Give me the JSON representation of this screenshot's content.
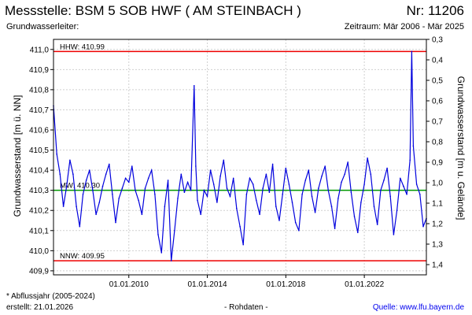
{
  "header": {
    "title": "Messstelle: BSM  5 SOB HWF ( AM STEINBACH )",
    "number": "Nr: 11206",
    "aquifer_label": "Grundwasserleiter:",
    "period": "Zeitraum: Mär 2006 - Mär 2025"
  },
  "footer": {
    "note": "* Abflussjahr (2005-2024)",
    "created": "erstellt:  21.01.2026",
    "data_type": "- Rohdaten -",
    "source": "Quelle:  www.lfu.bayern.de"
  },
  "colors": {
    "series": "#0000dd",
    "hhw": "#ee0000",
    "nnw": "#ee0000",
    "mw": "#009900",
    "grid": "#d0d0d0"
  },
  "chart_data": {
    "type": "line",
    "title": "",
    "ylabel": "Grundwasserstand [m ü. NN]",
    "ylabel_right": "Grundwasserstand [m u. Gelände]",
    "ylim": [
      409.88,
      411.05
    ],
    "ylim_right": [
      0.3,
      1.45
    ],
    "yticks": [
      "411,0",
      "410,9",
      "410,8",
      "410,7",
      "410,6",
      "410,5",
      "410,4",
      "410,3",
      "410,2",
      "410,1",
      "410,0",
      "409,9"
    ],
    "yticks_right": [
      "0,3",
      "0,4",
      "0,5",
      "0,6",
      "0,7",
      "0,8",
      "0,9",
      "1,0",
      "1,1",
      "1,2",
      "1,3",
      "1,4"
    ],
    "xticks": [
      "01.01.2010",
      "01.01.2014",
      "01.01.2018",
      "01.01.2022"
    ],
    "xlim": [
      "2006-03-01",
      "2025-03-01"
    ],
    "grid": true,
    "reference_lines": [
      {
        "label": "HHW: 410.99",
        "value": 410.99
      },
      {
        "label": "MW: 410.30",
        "value": 410.3
      },
      {
        "label": "NNW: 409.95",
        "value": 409.95
      }
    ],
    "series": [
      {
        "x": [
          "2006-03",
          "2006-05",
          "2006-07",
          "2006-09",
          "2006-11",
          "2007-01",
          "2007-03",
          "2007-05",
          "2007-07",
          "2007-09",
          "2007-11",
          "2008-01",
          "2008-03",
          "2008-05",
          "2008-07",
          "2008-09",
          "2008-11",
          "2009-01",
          "2009-03",
          "2009-05",
          "2009-07",
          "2009-09",
          "2009-11",
          "2010-01",
          "2010-03",
          "2010-05",
          "2010-07",
          "2010-09",
          "2010-11",
          "2011-01",
          "2011-03",
          "2011-05",
          "2011-07",
          "2011-09",
          "2011-11",
          "2012-01",
          "2012-03",
          "2012-05",
          "2012-07",
          "2012-09",
          "2012-11",
          "2013-01",
          "2013-03",
          "2013-05",
          "2013-06",
          "2013-07",
          "2013-09",
          "2013-11",
          "2014-01",
          "2014-03",
          "2014-05",
          "2014-07",
          "2014-09",
          "2014-11",
          "2015-01",
          "2015-03",
          "2015-05",
          "2015-07",
          "2015-09",
          "2015-11",
          "2016-01",
          "2016-03",
          "2016-05",
          "2016-07",
          "2016-09",
          "2016-11",
          "2017-01",
          "2017-03",
          "2017-05",
          "2017-07",
          "2017-09",
          "2017-11",
          "2018-01",
          "2018-03",
          "2018-05",
          "2018-07",
          "2018-09",
          "2018-11",
          "2019-01",
          "2019-03",
          "2019-05",
          "2019-07",
          "2019-09",
          "2019-11",
          "2020-01",
          "2020-03",
          "2020-05",
          "2020-07",
          "2020-09",
          "2020-11",
          "2021-01",
          "2021-03",
          "2021-05",
          "2021-07",
          "2021-09",
          "2021-11",
          "2022-01",
          "2022-03",
          "2022-05",
          "2022-07",
          "2022-09",
          "2022-11",
          "2023-01",
          "2023-03",
          "2023-05",
          "2023-07",
          "2023-09",
          "2023-11",
          "2024-01",
          "2024-03",
          "2024-05",
          "2024-06",
          "2024-07",
          "2024-09",
          "2024-11",
          "2025-01",
          "2025-03"
        ],
        "values": [
          410.72,
          410.48,
          410.38,
          410.22,
          410.32,
          410.45,
          410.38,
          410.22,
          410.12,
          410.28,
          410.35,
          410.4,
          410.3,
          410.18,
          410.24,
          410.32,
          410.38,
          410.43,
          410.28,
          410.14,
          410.26,
          410.31,
          410.36,
          410.34,
          410.42,
          410.3,
          410.25,
          410.18,
          410.31,
          410.36,
          410.4,
          410.28,
          410.08,
          409.99,
          410.22,
          410.35,
          409.95,
          410.1,
          410.26,
          410.38,
          410.29,
          410.34,
          410.3,
          410.82,
          410.42,
          410.25,
          410.18,
          410.3,
          410.27,
          410.4,
          410.33,
          410.24,
          410.37,
          410.45,
          410.31,
          410.27,
          410.36,
          410.21,
          410.12,
          410.03,
          410.28,
          410.36,
          410.33,
          410.25,
          410.18,
          410.31,
          410.38,
          410.29,
          410.43,
          410.22,
          410.15,
          410.28,
          410.41,
          410.33,
          410.24,
          410.14,
          410.1,
          410.28,
          410.35,
          410.4,
          410.27,
          410.19,
          410.31,
          410.37,
          410.42,
          410.3,
          410.22,
          410.11,
          410.26,
          410.34,
          410.38,
          410.44,
          410.29,
          410.17,
          410.09,
          410.24,
          410.33,
          410.46,
          410.38,
          410.22,
          410.13,
          410.3,
          410.35,
          410.41,
          410.27,
          410.08,
          410.2,
          410.36,
          410.32,
          410.28,
          410.45,
          410.99,
          410.52,
          410.33,
          410.28,
          410.12,
          410.16
        ]
      }
    ]
  }
}
